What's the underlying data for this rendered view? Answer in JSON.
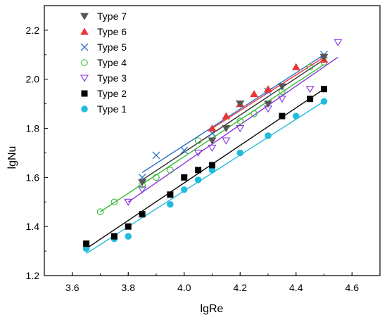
{
  "chart_data": {
    "type": "scatter",
    "title": "",
    "xlabel": "lgRe",
    "ylabel": "lgNu",
    "xlim": [
      3.5,
      4.7
    ],
    "ylim": [
      1.2,
      2.3
    ],
    "xticks": [
      "3.6",
      "3.8",
      "4.0",
      "4.2",
      "4.4",
      "4.6"
    ],
    "yticks": [
      "1.2",
      "1.4",
      "1.6",
      "1.8",
      "2.0",
      "2.2"
    ],
    "grid": false,
    "legend_position": "top-left",
    "series": [
      {
        "name": "Type 7",
        "marker": "triangle-down-filled",
        "color": "#555555",
        "x": [
          3.85,
          4.1,
          4.15,
          4.2,
          4.3,
          4.35,
          4.5
        ],
        "y": [
          1.58,
          1.75,
          1.8,
          1.9,
          1.9,
          1.97,
          2.09
        ],
        "fit": [
          [
            3.85,
            1.59
          ],
          [
            4.5,
            2.08
          ]
        ]
      },
      {
        "name": "Type 6",
        "marker": "triangle-up-filled",
        "color": "#ee3333",
        "x": [
          4.1,
          4.15,
          4.2,
          4.25,
          4.3,
          4.4,
          4.5
        ],
        "y": [
          1.8,
          1.85,
          1.9,
          1.94,
          1.96,
          2.05,
          2.08
        ],
        "fit": [
          [
            4.1,
            1.8
          ],
          [
            4.5,
            2.09
          ]
        ]
      },
      {
        "name": "Type 5",
        "marker": "x",
        "color": "#2b70c9",
        "x": [
          3.85,
          3.9,
          4.0,
          4.1,
          4.2,
          4.3,
          4.5
        ],
        "y": [
          1.6,
          1.69,
          1.71,
          1.78,
          1.9,
          1.95,
          2.1
        ],
        "fit": [
          [
            3.85,
            1.62
          ],
          [
            4.5,
            2.1
          ]
        ]
      },
      {
        "name": "Type 4",
        "marker": "circle-open",
        "color": "#33bb33",
        "x": [
          3.7,
          3.75,
          3.85,
          3.9,
          3.95,
          4.05,
          4.2,
          4.25,
          4.35,
          4.45,
          4.5
        ],
        "y": [
          1.46,
          1.5,
          1.57,
          1.6,
          1.63,
          1.75,
          1.83,
          1.86,
          1.95,
          2.05,
          2.07
        ],
        "fit": [
          [
            3.7,
            1.46
          ],
          [
            4.5,
            2.06
          ]
        ]
      },
      {
        "name": "Type 3",
        "marker": "triangle-down-open",
        "color": "#8833dd",
        "x": [
          3.8,
          3.85,
          4.05,
          4.1,
          4.15,
          4.2,
          4.3,
          4.35,
          4.45,
          4.55
        ],
        "y": [
          1.5,
          1.55,
          1.7,
          1.72,
          1.75,
          1.8,
          1.88,
          1.92,
          1.96,
          2.15
        ],
        "fit": [
          [
            3.8,
            1.5
          ],
          [
            4.55,
            2.09
          ]
        ]
      },
      {
        "name": "Type 2",
        "marker": "square-filled",
        "color": "#000000",
        "x": [
          3.65,
          3.75,
          3.8,
          3.85,
          3.95,
          4.0,
          4.05,
          4.1,
          4.35,
          4.45,
          4.5
        ],
        "y": [
          1.33,
          1.36,
          1.4,
          1.45,
          1.53,
          1.6,
          1.63,
          1.65,
          1.85,
          1.92,
          1.96
        ],
        "fit": [
          [
            3.65,
            1.31
          ],
          [
            4.5,
            1.96
          ]
        ]
      },
      {
        "name": "Type 1",
        "marker": "circle-filled",
        "color": "#22bbdd",
        "x": [
          3.65,
          3.75,
          3.8,
          3.85,
          3.95,
          4.0,
          4.05,
          4.1,
          4.2,
          4.3,
          4.4,
          4.5
        ],
        "y": [
          1.31,
          1.35,
          1.36,
          1.45,
          1.49,
          1.55,
          1.59,
          1.63,
          1.7,
          1.77,
          1.85,
          1.91
        ],
        "fit": [
          [
            3.65,
            1.29
          ],
          [
            4.5,
            1.91
          ]
        ]
      }
    ]
  }
}
